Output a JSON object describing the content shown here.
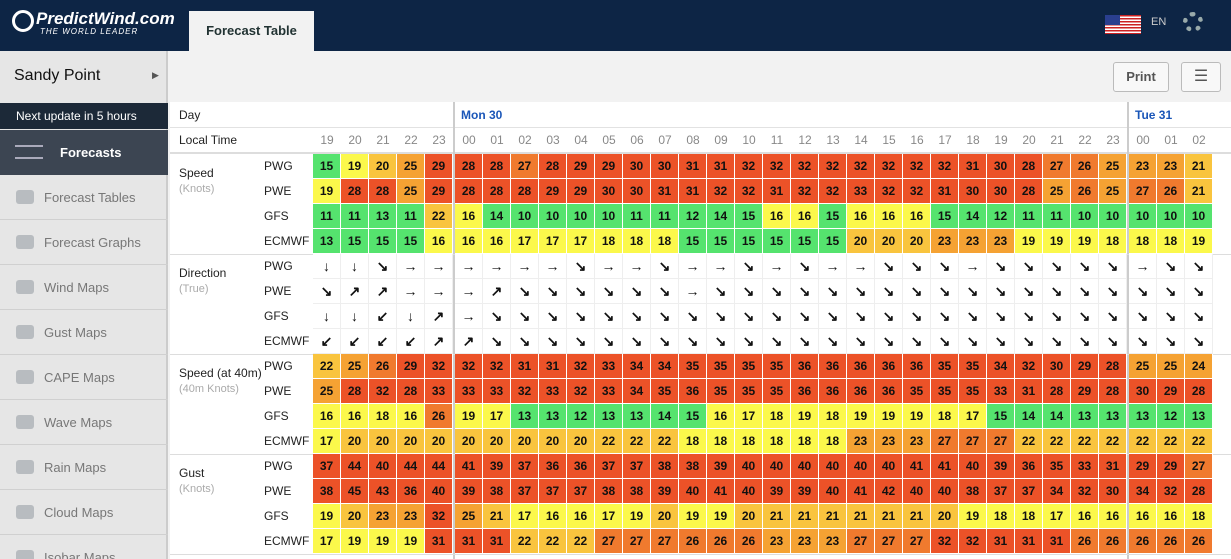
{
  "header": {
    "logo": "PredictWind.com",
    "tagline": "THE WORLD LEADER",
    "tab": "Forecast Table",
    "language": "EN"
  },
  "sidebar": {
    "location": "Sandy Point",
    "update": "Next update in 5 hours",
    "section": "Forecasts",
    "items": [
      "Forecast Tables",
      "Forecast Graphs",
      "Wind Maps",
      "Gust Maps",
      "CAPE Maps",
      "Wave Maps",
      "Rain Maps",
      "Cloud Maps",
      "Isobar Maps"
    ]
  },
  "toolbar": {
    "print": "Print"
  },
  "table": {
    "day_label": "Day",
    "time_label": "Local Time",
    "day_groups": [
      {
        "day": null,
        "hours": [
          "19",
          "20",
          "21",
          "22",
          "23"
        ]
      },
      {
        "day": "Mon 30",
        "hours": [
          "00",
          "01",
          "02",
          "03",
          "04",
          "05",
          "06",
          "07",
          "08",
          "09",
          "10",
          "11",
          "12",
          "13",
          "14",
          "15",
          "16",
          "17",
          "18",
          "19",
          "20",
          "21",
          "22",
          "23"
        ]
      },
      {
        "day": "Tue 31",
        "hours": [
          "00",
          "01",
          "02"
        ]
      }
    ],
    "groups": [
      {
        "label": "Speed",
        "unit": "(Knots)",
        "models": [
          {
            "name": "PWG",
            "values": [
              15,
              19,
              20,
              25,
              29,
              28,
              28,
              27,
              28,
              29,
              29,
              30,
              30,
              31,
              31,
              32,
              32,
              32,
              32,
              32,
              32,
              32,
              32,
              31,
              30,
              28,
              27,
              26,
              25,
              23,
              23,
              21
            ]
          },
          {
            "name": "PWE",
            "values": [
              19,
              28,
              28,
              25,
              29,
              28,
              28,
              28,
              29,
              29,
              30,
              30,
              31,
              31,
              32,
              32,
              31,
              32,
              32,
              33,
              32,
              32,
              31,
              30,
              30,
              28,
              25,
              26,
              25,
              27,
              26,
              21
            ]
          },
          {
            "name": "GFS",
            "values": [
              11,
              11,
              13,
              11,
              22,
              16,
              14,
              10,
              10,
              10,
              10,
              11,
              11,
              12,
              14,
              15,
              16,
              16,
              15,
              16,
              16,
              16,
              15,
              14,
              12,
              11,
              11,
              10,
              10,
              10,
              10,
              10
            ]
          },
          {
            "name": "ECMWF",
            "values": [
              13,
              15,
              15,
              15,
              16,
              16,
              16,
              17,
              17,
              17,
              18,
              18,
              18,
              15,
              15,
              15,
              15,
              15,
              15,
              20,
              20,
              20,
              23,
              23,
              23,
              19,
              19,
              19,
              18,
              18,
              18,
              19
            ]
          }
        ]
      },
      {
        "label": "Direction",
        "unit": "(True)",
        "models": [
          {
            "name": "PWG",
            "values": [
              "↓",
              "↓",
              "↘",
              "→",
              "→",
              "→",
              "→",
              "→",
              "→",
              "↘",
              "→",
              "→",
              "↘",
              "→",
              "→",
              "↘",
              "→",
              "↘",
              "→",
              "→",
              "↘",
              "↘",
              "↘",
              "→",
              "↘",
              "↘",
              "↘",
              "↘",
              "↘",
              "→",
              "↘",
              "↘"
            ]
          },
          {
            "name": "PWE",
            "values": [
              "↘",
              "↗",
              "↗",
              "→",
              "→",
              "→",
              "↗",
              "↘",
              "↘",
              "↘",
              "↘",
              "↘",
              "↘",
              "→",
              "↘",
              "↘",
              "↘",
              "↘",
              "↘",
              "↘",
              "↘",
              "↘",
              "↘",
              "↘",
              "↘",
              "↘",
              "↘",
              "↘",
              "↘",
              "↘",
              "↘",
              "↘"
            ]
          },
          {
            "name": "GFS",
            "values": [
              "↓",
              "↓",
              "↙",
              "↓",
              "↗",
              "→",
              "↘",
              "↘",
              "↘",
              "↘",
              "↘",
              "↘",
              "↘",
              "↘",
              "↘",
              "↘",
              "↘",
              "↘",
              "↘",
              "↘",
              "↘",
              "↘",
              "↘",
              "↘",
              "↘",
              "↘",
              "↘",
              "↘",
              "↘",
              "↘",
              "↘",
              "↘"
            ]
          },
          {
            "name": "ECMWF",
            "values": [
              "↙",
              "↙",
              "↙",
              "↙",
              "↗",
              "↗",
              "↘",
              "↘",
              "↘",
              "↘",
              "↘",
              "↘",
              "↘",
              "↘",
              "↘",
              "↘",
              "↘",
              "↘",
              "↘",
              "↘",
              "↘",
              "↘",
              "↘",
              "↘",
              "↘",
              "↘",
              "↘",
              "↘",
              "↘",
              "↘",
              "↘",
              "↘"
            ]
          }
        ]
      },
      {
        "label": "Speed (at 40m)",
        "unit": "(40m Knots)",
        "models": [
          {
            "name": "PWG",
            "values": [
              22,
              25,
              26,
              29,
              32,
              32,
              32,
              31,
              31,
              32,
              33,
              34,
              34,
              35,
              35,
              35,
              35,
              36,
              36,
              36,
              36,
              36,
              35,
              35,
              34,
              32,
              30,
              29,
              28,
              25,
              25,
              24
            ]
          },
          {
            "name": "PWE",
            "values": [
              25,
              28,
              32,
              28,
              33,
              33,
              33,
              32,
              33,
              32,
              33,
              34,
              35,
              36,
              35,
              35,
              35,
              36,
              36,
              36,
              36,
              35,
              35,
              35,
              33,
              31,
              28,
              29,
              28,
              30,
              29,
              28
            ]
          },
          {
            "name": "GFS",
            "values": [
              16,
              16,
              18,
              16,
              26,
              19,
              17,
              13,
              13,
              12,
              13,
              13,
              14,
              15,
              16,
              17,
              18,
              19,
              18,
              19,
              19,
              19,
              18,
              17,
              15,
              14,
              14,
              13,
              13,
              13,
              12,
              13
            ]
          },
          {
            "name": "ECMWF",
            "values": [
              17,
              20,
              20,
              20,
              20,
              20,
              20,
              20,
              20,
              20,
              22,
              22,
              22,
              18,
              18,
              18,
              18,
              18,
              18,
              23,
              23,
              23,
              27,
              27,
              27,
              22,
              22,
              22,
              22,
              22,
              22,
              22
            ]
          }
        ]
      },
      {
        "label": "Gust",
        "unit": "(Knots)",
        "models": [
          {
            "name": "PWG",
            "values": [
              37,
              44,
              40,
              44,
              44,
              41,
              39,
              37,
              36,
              36,
              37,
              37,
              38,
              38,
              39,
              40,
              40,
              40,
              40,
              40,
              40,
              41,
              41,
              40,
              39,
              36,
              35,
              33,
              31,
              29,
              29,
              27
            ]
          },
          {
            "name": "PWE",
            "values": [
              38,
              45,
              43,
              36,
              40,
              39,
              38,
              37,
              37,
              37,
              38,
              38,
              39,
              40,
              41,
              40,
              39,
              39,
              40,
              41,
              42,
              40,
              40,
              38,
              37,
              37,
              34,
              32,
              30,
              34,
              32,
              28
            ]
          },
          {
            "name": "GFS",
            "values": [
              19,
              20,
              23,
              23,
              32,
              25,
              21,
              17,
              16,
              16,
              17,
              19,
              20,
              19,
              19,
              20,
              21,
              21,
              21,
              21,
              21,
              21,
              20,
              19,
              18,
              18,
              17,
              16,
              16,
              16,
              16,
              18
            ]
          },
          {
            "name": "ECMWF",
            "values": [
              17,
              19,
              19,
              19,
              31,
              31,
              31,
              22,
              22,
              22,
              27,
              27,
              27,
              26,
              26,
              26,
              23,
              23,
              23,
              27,
              27,
              27,
              32,
              32,
              31,
              31,
              31,
              26,
              26,
              26,
              26,
              26
            ]
          }
        ]
      }
    ]
  }
}
